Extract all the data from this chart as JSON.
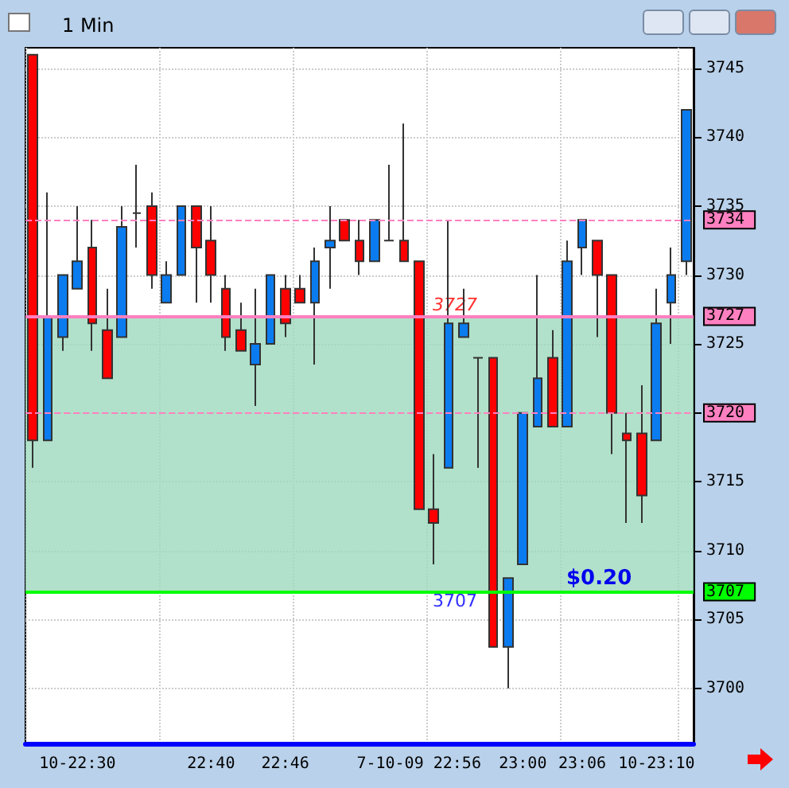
{
  "chart_data": {
    "type": "candlestick",
    "title": "1 Min",
    "categories": [
      null,
      null,
      null,
      "10-22:30",
      null,
      null,
      null,
      null,
      null,
      null,
      null,
      null,
      "22:40",
      null,
      null,
      null,
      null,
      "22:46",
      null,
      null,
      null,
      null,
      null,
      null,
      null,
      null,
      "7-10-09 22:56",
      null,
      null,
      null,
      null,
      null,
      null,
      "23:00",
      null,
      null,
      null,
      "23:06",
      null,
      null,
      null,
      null,
      "10-23:10",
      null,
      null
    ],
    "ohlc": [
      [
        3746,
        3746,
        3716,
        3718
      ],
      [
        3718,
        3736,
        3718,
        3727
      ],
      [
        3725.5,
        3730,
        3724.5,
        3730
      ],
      [
        3729,
        3735,
        3729,
        3731
      ],
      [
        3732,
        3734,
        3724.5,
        3726.5
      ],
      [
        3726,
        3729,
        3722.5,
        3722.5
      ],
      [
        3725.5,
        3735,
        3725.5,
        3733.5
      ],
      [
        3734.5,
        3738,
        3732,
        3734.5
      ],
      [
        3735,
        3736,
        3729,
        3730
      ],
      [
        3728,
        3731,
        3728,
        3730
      ],
      [
        3730,
        3735,
        3730,
        3735
      ],
      [
        3735,
        3735,
        3728,
        3732
      ],
      [
        3732.5,
        3735,
        3728,
        3730
      ],
      [
        3729,
        3730,
        3724.5,
        3725.5
      ],
      [
        3726,
        3728,
        3724.5,
        3724.5
      ],
      [
        3723.5,
        3729,
        3720.5,
        3725
      ],
      [
        3725,
        3730,
        3725,
        3730
      ],
      [
        3729,
        3730,
        3725.5,
        3726.5
      ],
      [
        3729,
        3730,
        3728,
        3728
      ],
      [
        3728,
        3732,
        3723.5,
        3731
      ],
      [
        3732,
        3735,
        3729,
        3732.5
      ],
      [
        3734,
        3734,
        3732.5,
        3732.5
      ],
      [
        3732.5,
        3734,
        3730,
        3731
      ],
      [
        3731,
        3734,
        3731,
        3734
      ],
      [
        3732.5,
        3738,
        3732.5,
        3732.5
      ],
      [
        3732.5,
        3741,
        3731,
        3731
      ],
      [
        3731,
        3731,
        3713,
        3713
      ],
      [
        3713,
        3717,
        3709,
        3712
      ],
      [
        3716,
        3734,
        3716,
        3726.5
      ],
      [
        3725.5,
        3729,
        3725.5,
        3726.5
      ],
      [
        3724,
        3724,
        3716,
        3724
      ],
      [
        3724,
        3724,
        3703,
        3703
      ],
      [
        3703,
        3708,
        3700,
        3708
      ],
      [
        3709,
        3720,
        3709,
        3720
      ],
      [
        3719,
        3730,
        3719,
        3722.5
      ],
      [
        3724,
        3726,
        3719,
        3719
      ],
      [
        3719,
        3732.5,
        3719,
        3731
      ],
      [
        3732,
        3734,
        3730,
        3734
      ],
      [
        3732.5,
        3732.5,
        3725.5,
        3730
      ],
      [
        3730,
        3730,
        3717,
        3720
      ],
      [
        3718.5,
        3720,
        3712,
        3718
      ],
      [
        3718.5,
        3722,
        3712,
        3714
      ],
      [
        3718,
        3729,
        3718,
        3726.5
      ],
      [
        3728,
        3732,
        3725,
        3730
      ],
      [
        3731,
        3742,
        3730,
        3742
      ]
    ],
    "colors": [
      "#ff0000",
      "#0a7cf0",
      "#0a7cf0",
      "#0a7cf0",
      "#ff0000",
      "#ff0000",
      "#0a7cf0",
      "#333333",
      "#ff0000",
      "#0a7cf0",
      "#0a7cf0",
      "#ff0000",
      "#ff0000",
      "#ff0000",
      "#ff0000",
      "#0a7cf0",
      "#0a7cf0",
      "#ff0000",
      "#ff0000",
      "#0a7cf0",
      "#0a7cf0",
      "#ff0000",
      "#ff0000",
      "#0a7cf0",
      "#333333",
      "#ff0000",
      "#ff0000",
      "#ff0000",
      "#0a7cf0",
      "#0a7cf0",
      "#333333",
      "#ff0000",
      "#0a7cf0",
      "#0a7cf0",
      "#0a7cf0",
      "#ff0000",
      "#0a7cf0",
      "#0a7cf0",
      "#ff0000",
      "#ff0000",
      "#ff0000",
      "#ff0000",
      "#0a7cf0",
      "#0a7cf0",
      "#0a7cf0"
    ],
    "ylim": [
      3696,
      3746.5
    ],
    "yticks": [
      3700,
      3705,
      3710,
      3715,
      3720,
      3725,
      3730,
      3735,
      3740,
      3745
    ],
    "grid": true,
    "ref_lines": [
      {
        "axis": "y",
        "value": 3734,
        "label": "3734",
        "color": "#ff80c0",
        "line_style": "dashed"
      },
      {
        "axis": "y",
        "value": 3720,
        "label": "3720",
        "color": "#ff80c0",
        "line_style": "dashed"
      },
      {
        "axis": "y",
        "value": 3727,
        "label": "3727",
        "color": "#ff80c0",
        "line_style": "solid"
      },
      {
        "axis": "y",
        "value": 3707,
        "label": "3707",
        "color": "#00ff00",
        "line_style": "solid"
      }
    ],
    "bands": [
      {
        "axis": "y",
        "from": 3707,
        "to": 3727,
        "label": null,
        "color": "#9ed9bd"
      }
    ],
    "annotations": [
      "3727",
      "3707",
      {
        "text": "$0.20",
        "x": "23:06",
        "y": 3707
      }
    ]
  }
}
